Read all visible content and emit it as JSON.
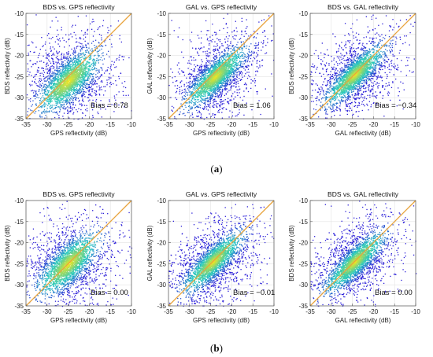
{
  "figure": {
    "panel_labels": [
      {
        "open": "(",
        "letter": "a",
        "close": ")"
      },
      {
        "open": "(",
        "letter": "b",
        "close": ")"
      }
    ]
  },
  "colors": {
    "identity_line": "#e8a33c",
    "grid": "#e3e3e3",
    "axis": "#555555",
    "density_low": "#2b1fd8",
    "density_mid": "#22c9c2",
    "density_high": "#f5e51e"
  },
  "chart_data": [
    {
      "type": "scatter",
      "row": "a",
      "title": "BDS vs. GPS reflectivity",
      "xlabel": "GPS reflectivity (dB)",
      "ylabel": "BDS reflectivity (dB)",
      "xlim": [
        -35,
        -10
      ],
      "ylim": [
        -35,
        -10
      ],
      "xticks": [
        -35,
        -30,
        -25,
        -20,
        -15,
        -10
      ],
      "yticks": [
        -35,
        -30,
        -25,
        -20,
        -15,
        -10
      ],
      "grid": true,
      "identity_line": true,
      "annotation": "Bias = 0.78",
      "density_center": [
        -25,
        -26
      ],
      "density_core_spread": 2.4
    },
    {
      "type": "scatter",
      "row": "a",
      "title": "GAL vs. GPS reflectivity",
      "xlabel": "GPS reflectivity (dB)",
      "ylabel": "GAL reflectivity (dB)",
      "xlim": [
        -35,
        -10
      ],
      "ylim": [
        -35,
        -10
      ],
      "xticks": [
        -35,
        -30,
        -25,
        -20,
        -15,
        -10
      ],
      "yticks": [
        -35,
        -30,
        -25,
        -20,
        -15,
        -10
      ],
      "grid": true,
      "identity_line": true,
      "annotation": "Bias = 1.06",
      "density_center": [
        -24,
        -25
      ],
      "density_core_spread": 1.8
    },
    {
      "type": "scatter",
      "row": "a",
      "title": "BDS vs. GAL reflectivity",
      "xlabel": "GAL reflectivity (dB)",
      "ylabel": "BDS reflectivity (dB)",
      "xlim": [
        -35,
        -10
      ],
      "ylim": [
        -35,
        -10
      ],
      "xticks": [
        -35,
        -30,
        -25,
        -20,
        -15,
        -10
      ],
      "yticks": [
        -35,
        -30,
        -25,
        -20,
        -15,
        -10
      ],
      "grid": true,
      "identity_line": true,
      "annotation": "Bias = −0.34",
      "density_center": [
        -24.5,
        -24.5
      ],
      "density_core_spread": 1.7
    },
    {
      "type": "scatter",
      "row": "b",
      "title": "BDS vs. GPS reflectivity",
      "xlabel": "GPS reflectivity (dB)",
      "ylabel": "BDS reflectivity (dB)",
      "xlim": [
        -35,
        -10
      ],
      "ylim": [
        -35,
        -10
      ],
      "xticks": [
        -35,
        -30,
        -25,
        -20,
        -15,
        -10
      ],
      "yticks": [
        -35,
        -30,
        -25,
        -20,
        -15,
        -10
      ],
      "grid": true,
      "identity_line": true,
      "annotation": "Bias = 0.00",
      "density_center": [
        -25,
        -25
      ],
      "density_core_spread": 2.4
    },
    {
      "type": "scatter",
      "row": "b",
      "title": "GAL vs. GPS reflectivity",
      "xlabel": "GPS reflectivity (dB)",
      "ylabel": "GAL reflectivity (dB)",
      "xlim": [
        -35,
        -10
      ],
      "ylim": [
        -35,
        -10
      ],
      "xticks": [
        -35,
        -30,
        -25,
        -20,
        -15,
        -10
      ],
      "yticks": [
        -35,
        -30,
        -25,
        -20,
        -15,
        -10
      ],
      "grid": true,
      "identity_line": true,
      "annotation": "Bias = −0.01",
      "density_center": [
        -24.5,
        -24.5
      ],
      "density_core_spread": 1.8
    },
    {
      "type": "scatter",
      "row": "b",
      "title": "BDS vs. GAL reflectivity",
      "xlabel": "GAL reflectivity (dB)",
      "ylabel": "BDS reflectivity (dB)",
      "xlim": [
        -35,
        -10
      ],
      "ylim": [
        -35,
        -10
      ],
      "xticks": [
        -35,
        -30,
        -25,
        -20,
        -15,
        -10
      ],
      "yticks": [
        -35,
        -30,
        -25,
        -20,
        -15,
        -10
      ],
      "grid": true,
      "identity_line": true,
      "annotation": "Bias = 0.00",
      "density_center": [
        -24.5,
        -24.5
      ],
      "density_core_spread": 1.7
    }
  ]
}
